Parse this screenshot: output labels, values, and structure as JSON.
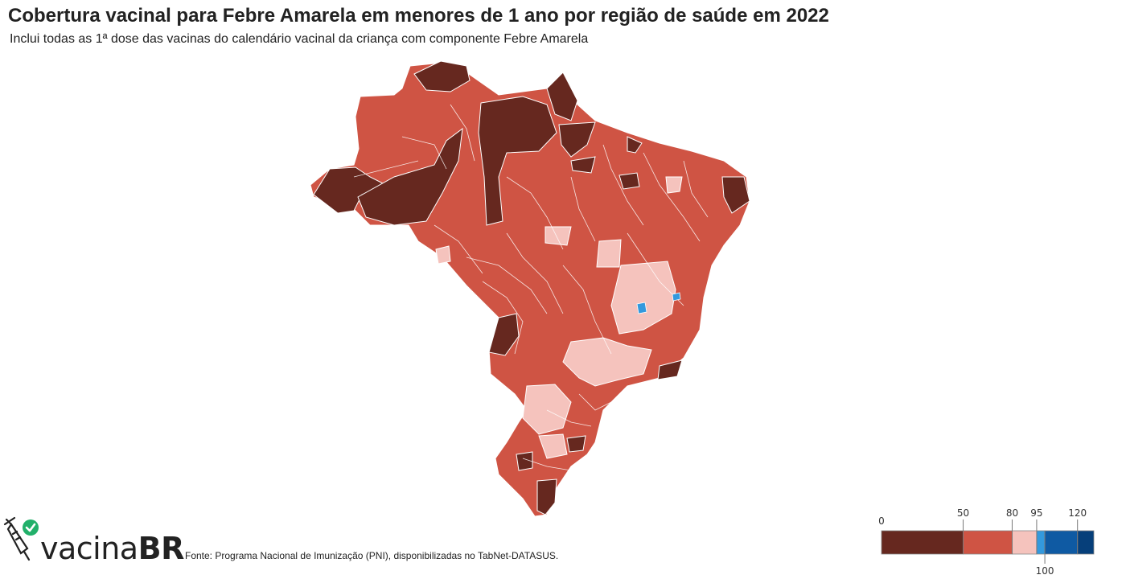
{
  "header": {
    "title": "Cobertura vacinal  para Febre Amarela em menores de 1 ano por região de saúde em 2022",
    "subtitle": "Inclui todas as 1ª dose das vacinas do calendário vacinal da criança com componente Febre Amarela"
  },
  "footer": {
    "logo_text_light": "vacina",
    "logo_text_bold": "BR",
    "source": "Fonte: Programa Nacional de Imunização (PNI), disponibilizadas no TabNet-DATASUS."
  },
  "legend": {
    "ticks": [
      {
        "value": 0,
        "label": "0"
      },
      {
        "value": 50,
        "label": "50"
      },
      {
        "value": 80,
        "label": "80"
      },
      {
        "value": 95,
        "label": "95"
      },
      {
        "value": 100,
        "label": "100"
      },
      {
        "value": 120,
        "label": "120"
      }
    ],
    "bins": [
      {
        "from": 0,
        "to": 50,
        "color": "#66281f"
      },
      {
        "from": 50,
        "to": 80,
        "color": "#cf5444"
      },
      {
        "from": 80,
        "to": 95,
        "color": "#f5c3bd"
      },
      {
        "from": 95,
        "to": 100,
        "color": "#3399dd"
      },
      {
        "from": 100,
        "to": 120,
        "color": "#0f5aa3"
      },
      {
        "from": 120,
        "to": 130,
        "color": "#063f7a"
      }
    ]
  },
  "colors": {
    "very_low": "#66281f",
    "low": "#cf5444",
    "medium": "#f5c3bd",
    "target": "#3399dd",
    "high": "#0f5aa3",
    "very_high": "#063f7a"
  }
}
